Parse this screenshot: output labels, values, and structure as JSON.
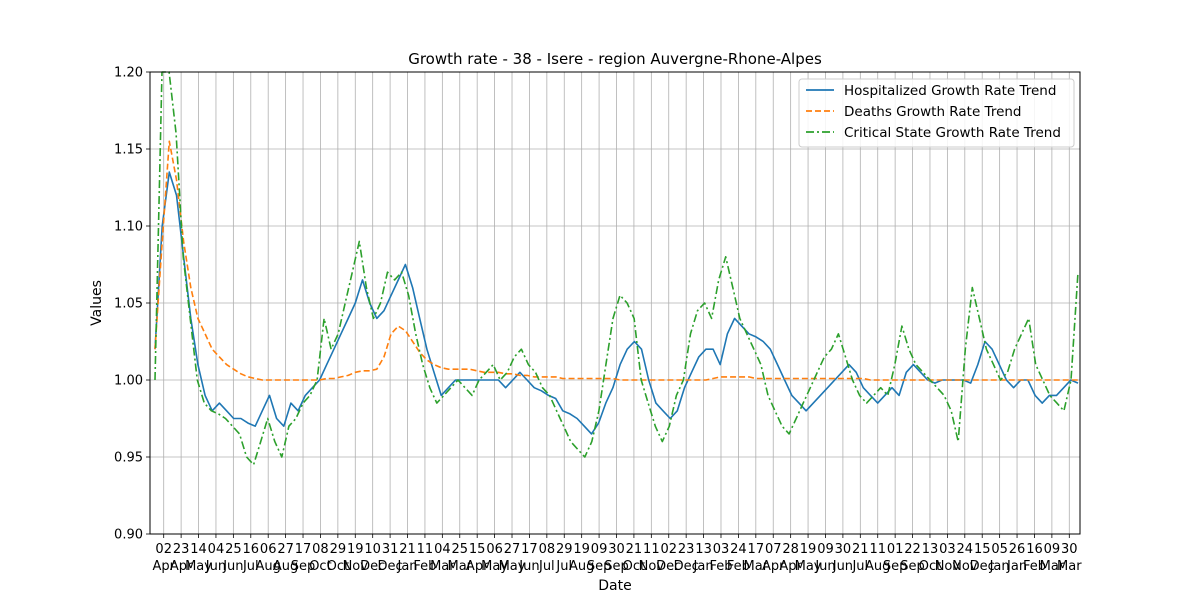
{
  "chart_data": {
    "type": "line",
    "title": "Growth rate - 38 - Isere - region Auvergne-Rhone-Alpes",
    "xlabel": "Date",
    "ylabel": "Values",
    "ylim": [
      0.9,
      1.2
    ],
    "yticks": [
      "0.90",
      "0.95",
      "1.00",
      "1.05",
      "1.10",
      "1.15",
      "1.20"
    ],
    "grid": true,
    "legend_position": "top-right",
    "xticks": [
      {
        "day": "02",
        "month": "Apr"
      },
      {
        "day": "23",
        "month": "Apr"
      },
      {
        "day": "14",
        "month": "May"
      },
      {
        "day": "04",
        "month": "Jun"
      },
      {
        "day": "25",
        "month": "Jun"
      },
      {
        "day": "16",
        "month": "Jul"
      },
      {
        "day": "06",
        "month": "Aug"
      },
      {
        "day": "27",
        "month": "Aug"
      },
      {
        "day": "17",
        "month": "Sep"
      },
      {
        "day": "08",
        "month": "Oct"
      },
      {
        "day": "29",
        "month": "Oct"
      },
      {
        "day": "19",
        "month": "Nov"
      },
      {
        "day": "10",
        "month": "Dec"
      },
      {
        "day": "31",
        "month": "Dec"
      },
      {
        "day": "21",
        "month": "Jan"
      },
      {
        "day": "11",
        "month": "Feb"
      },
      {
        "day": "04",
        "month": "Mar"
      },
      {
        "day": "25",
        "month": "Mar"
      },
      {
        "day": "15",
        "month": "Apr"
      },
      {
        "day": "06",
        "month": "May"
      },
      {
        "day": "27",
        "month": "May"
      },
      {
        "day": "17",
        "month": "Jun"
      },
      {
        "day": "08",
        "month": "Jul"
      },
      {
        "day": "29",
        "month": "Jul"
      },
      {
        "day": "19",
        "month": "Aug"
      },
      {
        "day": "09",
        "month": "Sep"
      },
      {
        "day": "30",
        "month": "Sep"
      },
      {
        "day": "21",
        "month": "Oct"
      },
      {
        "day": "11",
        "month": "Nov"
      },
      {
        "day": "02",
        "month": "Dec"
      },
      {
        "day": "23",
        "month": "Dec"
      },
      {
        "day": "13",
        "month": "Jan"
      },
      {
        "day": "03",
        "month": "Feb"
      },
      {
        "day": "24",
        "month": "Feb"
      },
      {
        "day": "17",
        "month": "Mar"
      },
      {
        "day": "07",
        "month": "Apr"
      },
      {
        "day": "28",
        "month": "Apr"
      },
      {
        "day": "19",
        "month": "May"
      },
      {
        "day": "09",
        "month": "Jun"
      },
      {
        "day": "30",
        "month": "Jun"
      },
      {
        "day": "21",
        "month": "Jul"
      },
      {
        "day": "11",
        "month": "Aug"
      },
      {
        "day": "01",
        "month": "Sep"
      },
      {
        "day": "22",
        "month": "Sep"
      },
      {
        "day": "13",
        "month": "Oct"
      },
      {
        "day": "03",
        "month": "Nov"
      },
      {
        "day": "24",
        "month": "Nov"
      },
      {
        "day": "15",
        "month": "Dec"
      },
      {
        "day": "05",
        "month": "Jan"
      },
      {
        "day": "26",
        "month": "Jan"
      },
      {
        "day": "16",
        "month": "Feb"
      },
      {
        "day": "09",
        "month": "Mar"
      },
      {
        "day": "30",
        "month": "Mar"
      }
    ],
    "series": [
      {
        "name": "Hospitalized Growth Rate Trend",
        "color": "#1f77b4",
        "style": "solid",
        "values": [
          1.02,
          1.1,
          1.135,
          1.12,
          1.08,
          1.04,
          1.01,
          0.99,
          0.98,
          0.985,
          0.98,
          0.975,
          0.975,
          0.972,
          0.97,
          0.98,
          0.99,
          0.975,
          0.97,
          0.985,
          0.98,
          0.99,
          0.995,
          1.0,
          1.01,
          1.02,
          1.03,
          1.04,
          1.05,
          1.065,
          1.05,
          1.04,
          1.045,
          1.055,
          1.065,
          1.075,
          1.06,
          1.04,
          1.02,
          1.005,
          0.99,
          0.995,
          1.0,
          1.0,
          1.0,
          1.0,
          1.0,
          1.0,
          1.0,
          0.995,
          1.0,
          1.005,
          1.0,
          0.995,
          0.993,
          0.99,
          0.988,
          0.98,
          0.978,
          0.975,
          0.97,
          0.965,
          0.972,
          0.985,
          0.995,
          1.01,
          1.02,
          1.025,
          1.02,
          1.0,
          0.985,
          0.98,
          0.975,
          0.98,
          0.995,
          1.005,
          1.015,
          1.02,
          1.02,
          1.01,
          1.03,
          1.04,
          1.035,
          1.03,
          1.028,
          1.025,
          1.02,
          1.01,
          1.0,
          0.99,
          0.985,
          0.98,
          0.985,
          0.99,
          0.995,
          1.0,
          1.005,
          1.01,
          1.005,
          0.995,
          0.99,
          0.985,
          0.99,
          0.995,
          0.99,
          1.005,
          1.01,
          1.005,
          1.0,
          0.998,
          1.0,
          1.0,
          1.0,
          1.0,
          0.998,
          1.01,
          1.025,
          1.02,
          1.01,
          1.0,
          0.995,
          1.0,
          1.0,
          0.99,
          0.985,
          0.99,
          0.99,
          0.995,
          1.0,
          0.998
        ]
      },
      {
        "name": "Deaths Growth Rate Trend",
        "color": "#ff7f0e",
        "style": "dashed",
        "values": [
          1.02,
          1.09,
          1.155,
          1.13,
          1.09,
          1.06,
          1.04,
          1.03,
          1.02,
          1.015,
          1.01,
          1.007,
          1.004,
          1.002,
          1.001,
          1.0,
          1.0,
          1.0,
          1.0,
          1.0,
          1.0,
          1.0,
          1.0,
          1.0,
          1.001,
          1.001,
          1.002,
          1.003,
          1.005,
          1.006,
          1.006,
          1.007,
          1.015,
          1.03,
          1.035,
          1.032,
          1.025,
          1.018,
          1.013,
          1.01,
          1.008,
          1.007,
          1.007,
          1.007,
          1.007,
          1.006,
          1.005,
          1.005,
          1.005,
          1.004,
          1.004,
          1.003,
          1.003,
          1.002,
          1.002,
          1.002,
          1.002,
          1.001,
          1.001,
          1.001,
          1.001,
          1.001,
          1.001,
          1.001,
          1.001,
          1.0,
          1.0,
          1.0,
          1.0,
          1.0,
          1.0,
          1.0,
          1.0,
          1.0,
          1.0,
          1.0,
          1.0,
          1.0,
          1.001,
          1.002,
          1.002,
          1.002,
          1.002,
          1.002,
          1.001,
          1.001,
          1.001,
          1.001,
          1.001,
          1.001,
          1.001,
          1.001,
          1.001,
          1.001,
          1.001,
          1.001,
          1.001,
          1.001,
          1.001,
          1.001,
          1.0,
          1.0,
          1.0,
          1.0,
          1.0,
          1.0,
          1.0,
          1.0,
          1.0,
          1.0,
          1.0,
          1.0,
          1.0,
          1.0,
          1.0,
          1.0,
          1.0,
          1.0,
          1.0,
          1.0,
          1.0,
          1.0,
          1.0,
          1.0,
          1.0,
          1.0,
          1.0,
          1.0,
          1.0,
          1.0
        ]
      },
      {
        "name": "Critical State Growth Rate Trend",
        "color": "#2ca02c",
        "style": "dashdot",
        "values": [
          1.0,
          1.2,
          1.2,
          1.16,
          1.08,
          1.04,
          1.0,
          0.985,
          0.98,
          0.978,
          0.975,
          0.97,
          0.965,
          0.95,
          0.945,
          0.96,
          0.975,
          0.96,
          0.95,
          0.97,
          0.975,
          0.985,
          0.99,
          1.0,
          1.04,
          1.02,
          1.03,
          1.05,
          1.07,
          1.09,
          1.06,
          1.04,
          1.05,
          1.07,
          1.065,
          1.07,
          1.055,
          1.03,
          1.01,
          0.995,
          0.985,
          0.99,
          0.995,
          1.0,
          0.995,
          0.99,
          1.0,
          1.005,
          1.01,
          1.0,
          1.005,
          1.015,
          1.02,
          1.01,
          1.005,
          0.995,
          0.99,
          0.98,
          0.97,
          0.96,
          0.955,
          0.95,
          0.96,
          0.98,
          1.01,
          1.04,
          1.055,
          1.05,
          1.04,
          1.0,
          0.985,
          0.97,
          0.96,
          0.97,
          0.99,
          1.0,
          1.03,
          1.045,
          1.05,
          1.04,
          1.065,
          1.08,
          1.06,
          1.04,
          1.03,
          1.02,
          1.01,
          0.99,
          0.98,
          0.97,
          0.965,
          0.975,
          0.985,
          0.995,
          1.005,
          1.015,
          1.02,
          1.03,
          1.015,
          1.0,
          0.99,
          0.985,
          0.99,
          0.995,
          0.99,
          1.01,
          1.035,
          1.02,
          1.01,
          1.005,
          1.0,
          0.995,
          0.99,
          0.98,
          0.96,
          1.02,
          1.06,
          1.04,
          1.02,
          1.01,
          1.0,
          1.005,
          1.02,
          1.03,
          1.04,
          1.01,
          1.0,
          0.99,
          0.985,
          0.98,
          1.0,
          1.07
        ]
      }
    ]
  }
}
